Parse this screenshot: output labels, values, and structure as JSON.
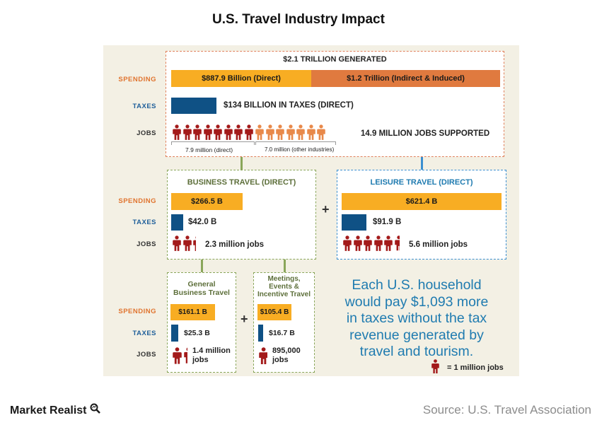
{
  "title": "U.S. Travel Industry Impact",
  "colors": {
    "spending_direct": "#f8ad23",
    "spending_indirect": "#e07a3f",
    "taxes": "#0f5185",
    "jobs_direct": "#a31a1a",
    "jobs_other": "#e8894a",
    "text_blue": "#1f7bb0"
  },
  "row_labels": {
    "spending": "SPENDING",
    "taxes": "TAXES",
    "jobs": "JOBS"
  },
  "total": {
    "header": "$2.1 TRILLION GENERATED",
    "spending_direct": "$887.9 Billion (Direct)",
    "spending_indirect": "$1.2 Trillion (Indirect & Induced)",
    "taxes": "$134 BILLION IN TAXES (DIRECT)",
    "jobs": "14.9 MILLION JOBS SUPPORTED",
    "jobs_direct_label": "7.9 million (direct)",
    "jobs_other_label": "7.0 million (other industries)",
    "jobs_direct_icons": 8,
    "jobs_other_icons": 7
  },
  "business": {
    "header": "BUSINESS TRAVEL (DIRECT)",
    "spending": "$266.5 B",
    "taxes": "$42.0 B",
    "jobs": "2.3 million jobs",
    "jobs_icons": 2.3
  },
  "leisure": {
    "header": "LEISURE TRAVEL (DIRECT)",
    "spending": "$621.4 B",
    "taxes": "$91.9 B",
    "jobs": "5.6 million jobs",
    "jobs_icons": 5.6
  },
  "general": {
    "header_line1": "General",
    "header_line2": "Business Travel",
    "spending": "$161.1 B",
    "taxes": "$25.3 B",
    "jobs_line1": "1.4 million",
    "jobs_line2": "jobs",
    "jobs_icons": 1.4
  },
  "meetings": {
    "header_line1": "Meetings,",
    "header_line2": "Events &",
    "header_line3": "Incentive Travel",
    "spending": "$105.4 B",
    "taxes": "$16.7 B",
    "jobs_line1": "895,000",
    "jobs_line2": "jobs",
    "jobs_icons": 0.9
  },
  "plus_sign": "+",
  "household": {
    "line1": "Each U.S. household",
    "line2": "would pay $1,093 more",
    "line3": "in taxes without the tax",
    "line4": "revenue generated by",
    "line5": "travel and tourism."
  },
  "legend": "= 1 million  jobs",
  "footer": {
    "brand": "Market Realist",
    "source": "Source: U.S. Travel Association"
  }
}
